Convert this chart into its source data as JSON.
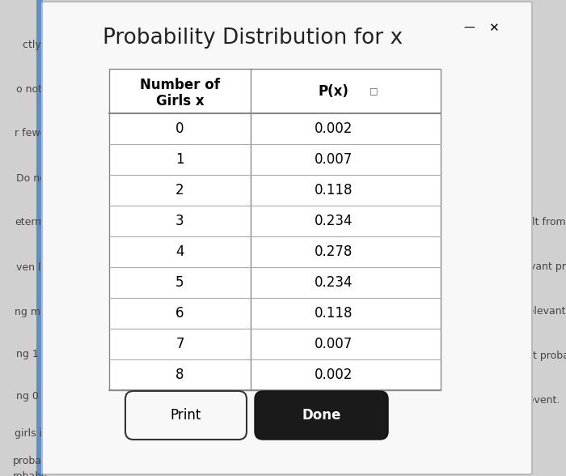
{
  "title": "Probability Distribution for x",
  "col1_header_line1": "Number of",
  "col1_header_line2": "Girls x",
  "col2_header": "P(x)",
  "rows": [
    [
      0,
      "0.002"
    ],
    [
      1,
      "0.007"
    ],
    [
      2,
      "0.118"
    ],
    [
      3,
      "0.234"
    ],
    [
      4,
      "0.278"
    ],
    [
      5,
      "0.234"
    ],
    [
      6,
      "0.118"
    ],
    [
      7,
      "0.007"
    ],
    [
      8,
      "0.002"
    ]
  ],
  "outer_bg": "#c8c8c8",
  "left_strip_color": "#5b8fc9",
  "dialog_bg": "#f5f5f5",
  "dialog_inner_bg": "#ffffff",
  "title_fontsize": 19,
  "cell_fontsize": 12,
  "header_fontsize": 12,
  "button_print_label": "Print",
  "button_done_label": "Done",
  "side_text_color": "#555555",
  "title_color": "#222222"
}
